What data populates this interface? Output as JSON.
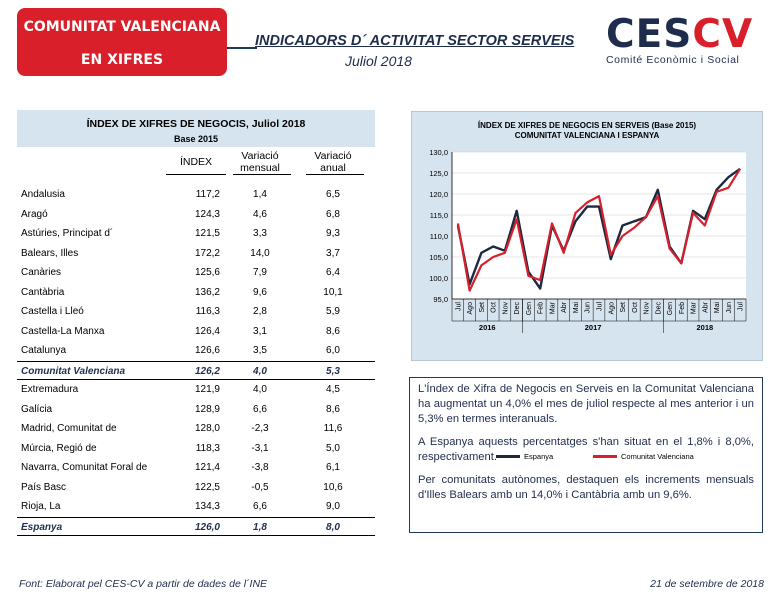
{
  "header": {
    "badge_line1": "COMUNITAT VALENCIANA",
    "badge_line2": "EN XIFRES",
    "title": "INDICADORS D´ ACTIVITAT SECTOR SERVEIS",
    "subtitle": "Juliol 2018",
    "logo_ces": "CES",
    "logo_cv": "CV",
    "logo_tagline": "Comité Econòmic i Social"
  },
  "table": {
    "title": "ÍNDEX DE XIFRES DE NEGOCIS, Juliol 2018",
    "base": "Base 2015",
    "col_index": "ÍNDEX",
    "col_mensual_1": "Variació",
    "col_mensual_2": "mensual",
    "col_anual_1": "Variació",
    "col_anual_2": "anual",
    "rows": [
      {
        "name": "Andalusia",
        "index": "117,2",
        "mensual": "1,4",
        "anual": "6,5"
      },
      {
        "name": "Aragó",
        "index": "124,3",
        "mensual": "4,6",
        "anual": "6,8"
      },
      {
        "name": "Astúries, Principat d´",
        "index": "121,5",
        "mensual": "3,3",
        "anual": "9,3"
      },
      {
        "name": "Balears, Illes",
        "index": "172,2",
        "mensual": "14,0",
        "anual": "3,7"
      },
      {
        "name": "Canàries",
        "index": "125,6",
        "mensual": "7,9",
        "anual": "6,4"
      },
      {
        "name": "Cantàbria",
        "index": "136,2",
        "mensual": "9,6",
        "anual": "10,1"
      },
      {
        "name": "Castella i Lleó",
        "index": "116,3",
        "mensual": "2,8",
        "anual": "5,9"
      },
      {
        "name": "Castella-La Manxa",
        "index": "126,4",
        "mensual": "3,1",
        "anual": "8,6"
      },
      {
        "name": "Catalunya",
        "index": "126,6",
        "mensual": "3,5",
        "anual": "6,0"
      },
      {
        "name": "Comunitat Valenciana",
        "index": "126,2",
        "mensual": "4,0",
        "anual": "5,3"
      },
      {
        "name": "Extremadura",
        "index": "121,9",
        "mensual": "4,0",
        "anual": "4,5"
      },
      {
        "name": "Galícia",
        "index": "128,9",
        "mensual": "6,6",
        "anual": "8,6"
      },
      {
        "name": "Madrid, Comunitat de",
        "index": "128,0",
        "mensual": "-2,3",
        "anual": "11,6"
      },
      {
        "name": "Múrcia, Regió de",
        "index": "118,3",
        "mensual": "-3,1",
        "anual": "5,0"
      },
      {
        "name": "Navarra, Comunitat Foral de",
        "index": "121,4",
        "mensual": "-3,8",
        "anual": "6,1"
      },
      {
        "name": "País Basc",
        "index": "122,5",
        "mensual": "-0,5",
        "anual": "10,6"
      },
      {
        "name": "Rioja, La",
        "index": "134,3",
        "mensual": "6,6",
        "anual": "9,0"
      },
      {
        "name": "Espanya",
        "index": "126,0",
        "mensual": "1,8",
        "anual": "8,0"
      }
    ]
  },
  "chart_data": {
    "type": "line",
    "title": "ÍNDEX DE XIFRES DE NEGOCIS EN SERVEIS (Base 2015)",
    "subtitle": "COMUNITAT  VALENCIANA  I ESPANYA",
    "x": [
      "Jul",
      "Ago",
      "Set",
      "Oct",
      "Nov",
      "Dec",
      "Gen",
      "Feb",
      "Mar",
      "Abr",
      "Mai",
      "Jun",
      "Jul",
      "Ago",
      "Set",
      "Oct",
      "Nov",
      "Dec",
      "Gen",
      "Feb",
      "Mar",
      "Abr",
      "Mai",
      "Jun",
      "Jul"
    ],
    "year_labels": [
      {
        "label": "2016",
        "start": 0,
        "end": 5
      },
      {
        "label": "2017",
        "start": 6,
        "end": 17
      },
      {
        "label": "2018",
        "start": 18,
        "end": 24
      }
    ],
    "ylim": [
      95,
      130
    ],
    "yticks": [
      "95,0",
      "100,0",
      "105,0",
      "110,0",
      "115,0",
      "120,0",
      "125,0",
      "130,0"
    ],
    "ytick_values": [
      95,
      100,
      105,
      110,
      115,
      120,
      125,
      130
    ],
    "series": [
      {
        "name": "Espanya",
        "color": "#1b2a3f",
        "values": [
          112.5,
          98.5,
          106.0,
          107.5,
          106.5,
          116.0,
          101.5,
          97.5,
          112.5,
          106.5,
          113.5,
          117.0,
          117.0,
          104.5,
          112.5,
          113.5,
          114.5,
          121.0,
          107.5,
          103.5,
          116.0,
          114.0,
          121.0,
          124.0,
          126.0
        ]
      },
      {
        "name": "Comunitat Valenciana",
        "color": "#d6202e",
        "values": [
          113.0,
          97.0,
          103.0,
          105.0,
          106.0,
          114.0,
          100.5,
          99.5,
          113.0,
          106.0,
          115.5,
          118.0,
          119.5,
          105.5,
          110.0,
          112.0,
          114.5,
          119.5,
          107.0,
          103.5,
          115.5,
          112.5,
          120.5,
          121.5,
          126.0
        ]
      }
    ]
  },
  "text": {
    "p1": "L'Índex de Xifra de Negocis en Serveis en la Comunitat Valenciana ha augmentat un 4,0% el mes de juliol respecte al mes anterior i un 5,3% en termes interanuals.",
    "p2": "A Espanya aquests percentatges s'han situat en el 1,8% i 8,0%, respectivament.",
    "p3": "Per comunitats autònomes, destaquen els increments mensuals d'Illes Balears amb un 14,0% i Cantàbria amb un 9,6%."
  },
  "footer": {
    "source": "Font: Elaborat pel CES-CV a partir de dades de l´INE",
    "date": "21 de setembre de 2018"
  }
}
